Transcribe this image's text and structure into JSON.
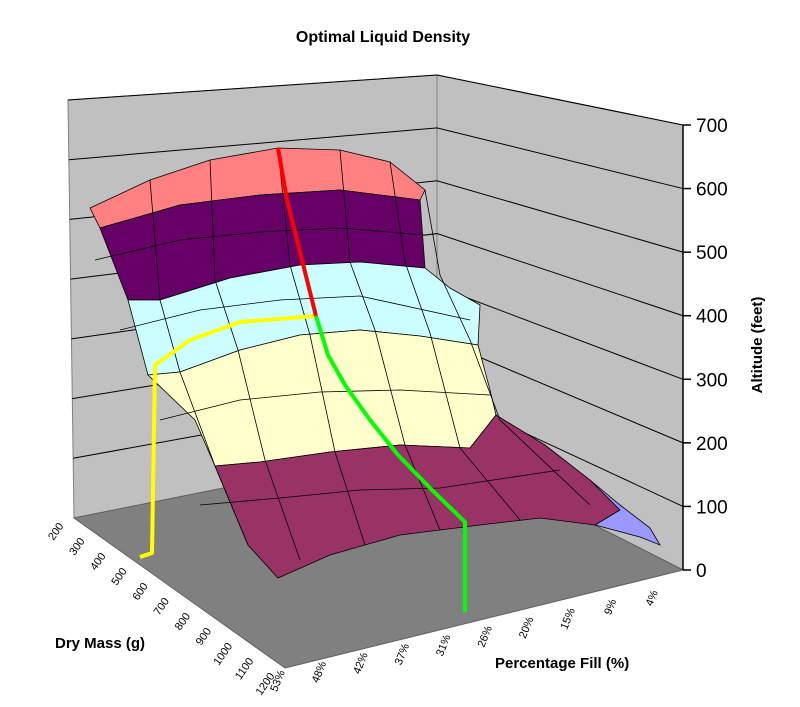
{
  "chart_data": {
    "type": "surface",
    "title": "Optimal Liquid Density",
    "x_axis": {
      "label": "Percentage Fill (%)",
      "ticks": [
        "53%",
        "48%",
        "42%",
        "37%",
        "31%",
        "26%",
        "20%",
        "15%",
        "9%",
        "4%"
      ]
    },
    "y_axis": {
      "label": "Dry Mass (g)",
      "ticks": [
        "200",
        "300",
        "400",
        "500",
        "600",
        "700",
        "800",
        "900",
        "1000",
        "1100",
        "1200"
      ]
    },
    "z_axis": {
      "label": "Altitude (feet)",
      "ticks": [
        "0",
        "100",
        "200",
        "300",
        "400",
        "500",
        "600",
        "700"
      ],
      "range": [
        0,
        700
      ]
    },
    "bands": [
      {
        "range": [
          0,
          100
        ],
        "color": "#9999ff"
      },
      {
        "range": [
          100,
          200
        ],
        "color": "#993366"
      },
      {
        "range": [
          200,
          300
        ],
        "color": "#ffffcc"
      },
      {
        "range": [
          300,
          400
        ],
        "color": "#ccffff"
      },
      {
        "range": [
          400,
          500
        ],
        "color": "#660066"
      },
      {
        "range": [
          500,
          700
        ],
        "color": "#ff8080"
      }
    ],
    "annotations": [
      {
        "name": "red-path",
        "color": "#ff0000",
        "description_points": "ridge from top of surface down to ~400 ft"
      },
      {
        "name": "green-path",
        "color": "#00ff00",
        "drop_fill": "31%",
        "start_altitude": 400
      },
      {
        "name": "yellow-path",
        "color": "#ffff00",
        "drop_mass": "500",
        "altitude": 340
      }
    ]
  }
}
